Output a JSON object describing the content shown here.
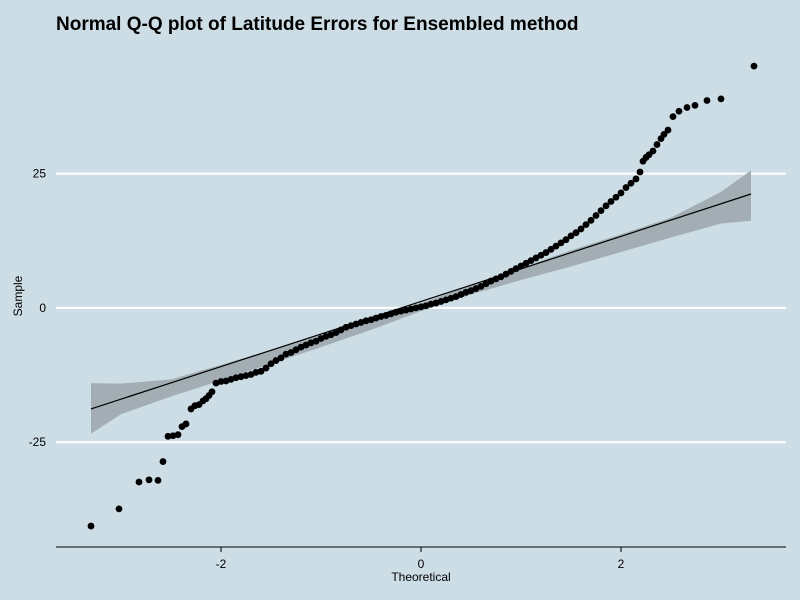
{
  "chart_data": {
    "type": "scatter",
    "title": "Normal Q-Q plot of Latitude Errors for Ensembled method",
    "xlabel": "Theoretical",
    "ylabel": "Sample",
    "x_ticks": [
      -2,
      0,
      2
    ],
    "y_ticks": [
      -25,
      0,
      25
    ],
    "xlim": [
      -3.65,
      3.65
    ],
    "ylim": [
      -44.5,
      48
    ],
    "grid": "horizontal",
    "colors": {
      "background": "#cddde5",
      "points": "#000000",
      "reference_line": "#000000",
      "confidence_band": "#a2aeb4"
    },
    "reference_line": {
      "x": [
        -3.3,
        3.3
      ],
      "y": [
        -18.8,
        21.2
      ]
    },
    "confidence_band": {
      "x": [
        -3.3,
        -3.0,
        -2.5,
        -2.0,
        -1.5,
        -1.0,
        -0.5,
        0.0,
        0.5,
        1.0,
        1.5,
        2.0,
        2.5,
        3.0,
        3.3
      ],
      "lower": [
        -23.4,
        -19.8,
        -16.5,
        -13.5,
        -10.4,
        -7.3,
        -4.1,
        -0.6,
        2.5,
        5.2,
        7.7,
        10.4,
        13.1,
        15.7,
        16.2
      ],
      "upper": [
        -14.0,
        -14.1,
        -13.3,
        -10.6,
        -7.8,
        -5.0,
        -2.0,
        0.9,
        4.2,
        7.5,
        10.7,
        13.7,
        16.8,
        21.6,
        25.6
      ]
    },
    "points": {
      "x": [
        -3.3,
        -3.02,
        -2.82,
        -2.72,
        -2.63,
        -2.58,
        -2.53,
        -2.48,
        -2.43,
        -2.39,
        -2.35,
        -2.3,
        -2.26,
        -2.22,
        -2.18,
        -2.15,
        -2.12,
        -2.09,
        -2.05,
        -2.0,
        -1.95,
        -1.9,
        -1.85,
        -1.8,
        -1.75,
        -1.7,
        -1.65,
        -1.6,
        -1.55,
        -1.5,
        -1.45,
        -1.4,
        -1.35,
        -1.3,
        -1.25,
        -1.2,
        -1.15,
        -1.1,
        -1.05,
        -1.0,
        -0.95,
        -0.9,
        -0.85,
        -0.8,
        -0.75,
        -0.7,
        -0.65,
        -0.6,
        -0.55,
        -0.5,
        -0.45,
        -0.4,
        -0.35,
        -0.3,
        -0.25,
        -0.2,
        -0.15,
        -0.1,
        -0.05,
        0.0,
        0.05,
        0.1,
        0.15,
        0.2,
        0.25,
        0.3,
        0.35,
        0.4,
        0.45,
        0.5,
        0.55,
        0.6,
        0.65,
        0.7,
        0.75,
        0.8,
        0.85,
        0.9,
        0.95,
        1.0,
        1.05,
        1.1,
        1.15,
        1.2,
        1.25,
        1.3,
        1.35,
        1.4,
        1.45,
        1.5,
        1.55,
        1.6,
        1.65,
        1.7,
        1.75,
        1.8,
        1.85,
        1.9,
        1.95,
        2.0,
        2.05,
        2.1,
        2.15,
        2.19,
        2.22,
        2.25,
        2.28,
        2.32,
        2.36,
        2.4,
        2.43,
        2.47,
        2.52,
        2.58,
        2.66,
        2.74,
        2.86,
        3.0,
        3.33
      ],
      "y": [
        -40.6,
        -37.4,
        -32.4,
        -32.0,
        -32.1,
        -28.6,
        -23.9,
        -23.8,
        -23.6,
        -22.1,
        -21.6,
        -18.8,
        -18.2,
        -18.0,
        -17.3,
        -16.9,
        -16.3,
        -15.6,
        -14.0,
        -13.7,
        -13.6,
        -13.3,
        -13.0,
        -12.8,
        -12.6,
        -12.4,
        -12.0,
        -11.8,
        -11.2,
        -10.4,
        -9.8,
        -9.3,
        -8.6,
        -8.3,
        -7.8,
        -7.3,
        -6.9,
        -6.5,
        -6.2,
        -5.7,
        -5.3,
        -5.0,
        -4.6,
        -4.1,
        -3.6,
        -3.3,
        -3.0,
        -2.7,
        -2.4,
        -2.2,
        -1.9,
        -1.6,
        -1.4,
        -1.1,
        -0.8,
        -0.6,
        -0.4,
        -0.2,
        0.0,
        0.2,
        0.4,
        0.7,
        0.9,
        1.2,
        1.5,
        1.8,
        2.1,
        2.5,
        2.9,
        3.2,
        3.6,
        4.0,
        4.5,
        5.0,
        5.4,
        5.8,
        6.3,
        6.8,
        7.3,
        7.8,
        8.3,
        8.8,
        9.3,
        9.8,
        10.3,
        10.9,
        11.5,
        12.1,
        12.7,
        13.4,
        14.0,
        14.7,
        15.5,
        16.3,
        17.2,
        18.1,
        19.0,
        19.8,
        20.6,
        21.4,
        22.4,
        23.2,
        24.0,
        25.3,
        27.3,
        28.0,
        28.5,
        29.2,
        30.4,
        31.5,
        32.3,
        33.1,
        35.6,
        36.6,
        37.3,
        37.7,
        38.6,
        38.9,
        45.0
      ]
    }
  }
}
